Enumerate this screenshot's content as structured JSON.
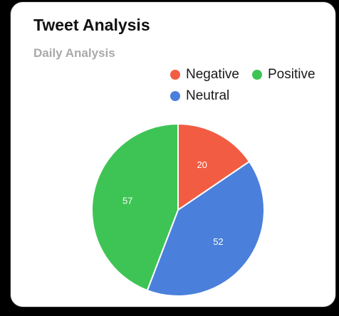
{
  "card": {
    "title": "Tweet Analysis",
    "subtitle": "Daily Analysis"
  },
  "chart_data": {
    "type": "pie",
    "title": "Tweet Analysis",
    "subtitle": "Daily Analysis",
    "legend_position": "top-right",
    "slices": [
      {
        "name": "Negative",
        "value": 20,
        "color": "#f25c43"
      },
      {
        "name": "Neutral",
        "value": 52,
        "color": "#4a80db"
      },
      {
        "name": "Positive",
        "value": 57,
        "color": "#3ec454"
      }
    ],
    "legend": [
      {
        "name": "Negative",
        "color": "#f25c43"
      },
      {
        "name": "Positive",
        "color": "#3ec454"
      },
      {
        "name": "Neutral",
        "color": "#4a80db"
      }
    ]
  }
}
